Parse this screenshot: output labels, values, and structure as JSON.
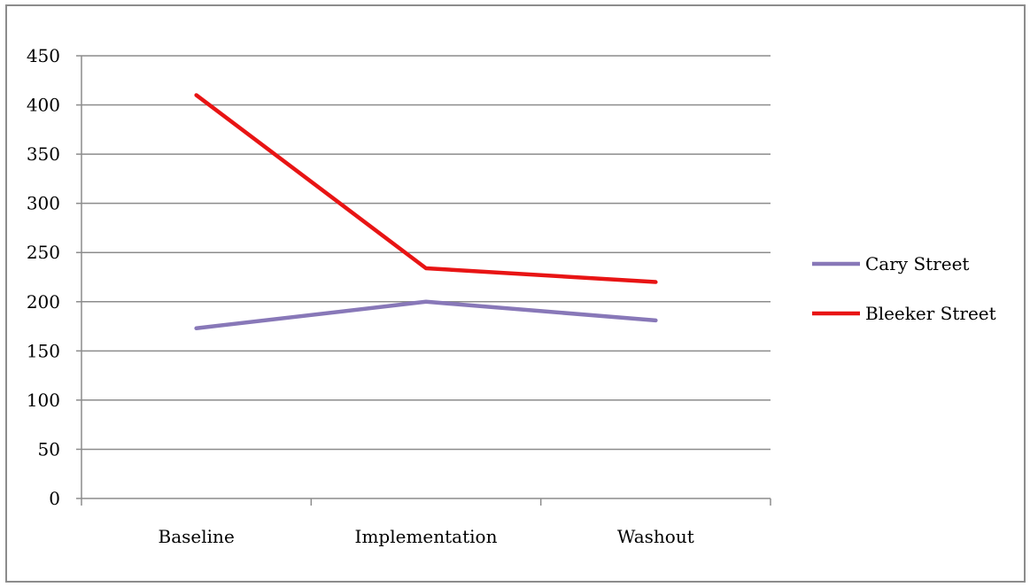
{
  "chart_data": {
    "type": "line",
    "title": "",
    "xlabel": "",
    "ylabel": "",
    "categories": [
      "Baseline",
      "Implementation",
      "Washout"
    ],
    "ylim": [
      0,
      450
    ],
    "yticks": [
      0,
      50,
      100,
      150,
      200,
      250,
      300,
      350,
      400,
      450
    ],
    "grid": true,
    "legend_position": "right",
    "series": [
      {
        "name": "Cary Street",
        "values": [
          173,
          200,
          181
        ],
        "color": "#8878b8"
      },
      {
        "name": "Bleeker Street",
        "values": [
          410,
          234,
          220
        ],
        "color": "#e81414"
      }
    ]
  }
}
